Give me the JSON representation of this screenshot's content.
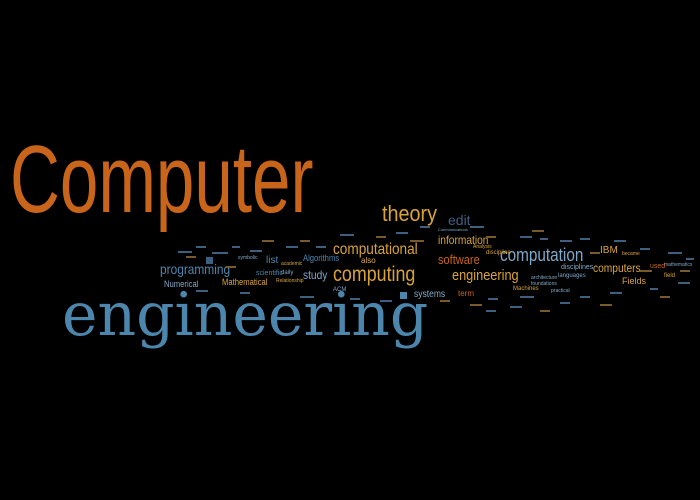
{
  "colors": {
    "background": "#000000",
    "orange": "#c8651b",
    "gold": "#d9a437",
    "blue": "#4d86ad",
    "light_blue": "#7fa8c8",
    "dim_blue": "#3d5f80"
  },
  "words": {
    "computer": "Computer",
    "engineering_big": "engineering",
    "theory": "theory",
    "edit": "edit",
    "computational": "computational",
    "information": "information",
    "computation": "computation",
    "software": "software",
    "computing": "computing",
    "engineering_mid": "engineering",
    "programming": "programming",
    "computers": "computers",
    "study": "study",
    "systems": "systems",
    "list": "list",
    "mathematical": "Mathematical",
    "numerical": "Numerical",
    "algorithms": "Algorithms",
    "scientific": "scientific",
    "also": "also",
    "term": "term",
    "ibm": "IBM",
    "fields": "Fields",
    "disciplines": "disciplines",
    "acm": "ACM",
    "machines": "Machines",
    "analysis": "Analysis",
    "discipline": "discipline",
    "languages": "languages",
    "symbolic": "symbolic",
    "daily": "daily",
    "relationship": "Relationship",
    "academic": "academic",
    "field": "field",
    "mathematics": "mathematics",
    "practical": "practical",
    "foundations": "foundations",
    "architecture": "architecture",
    "communications": "Communications",
    "became": "became",
    "used": "used"
  }
}
